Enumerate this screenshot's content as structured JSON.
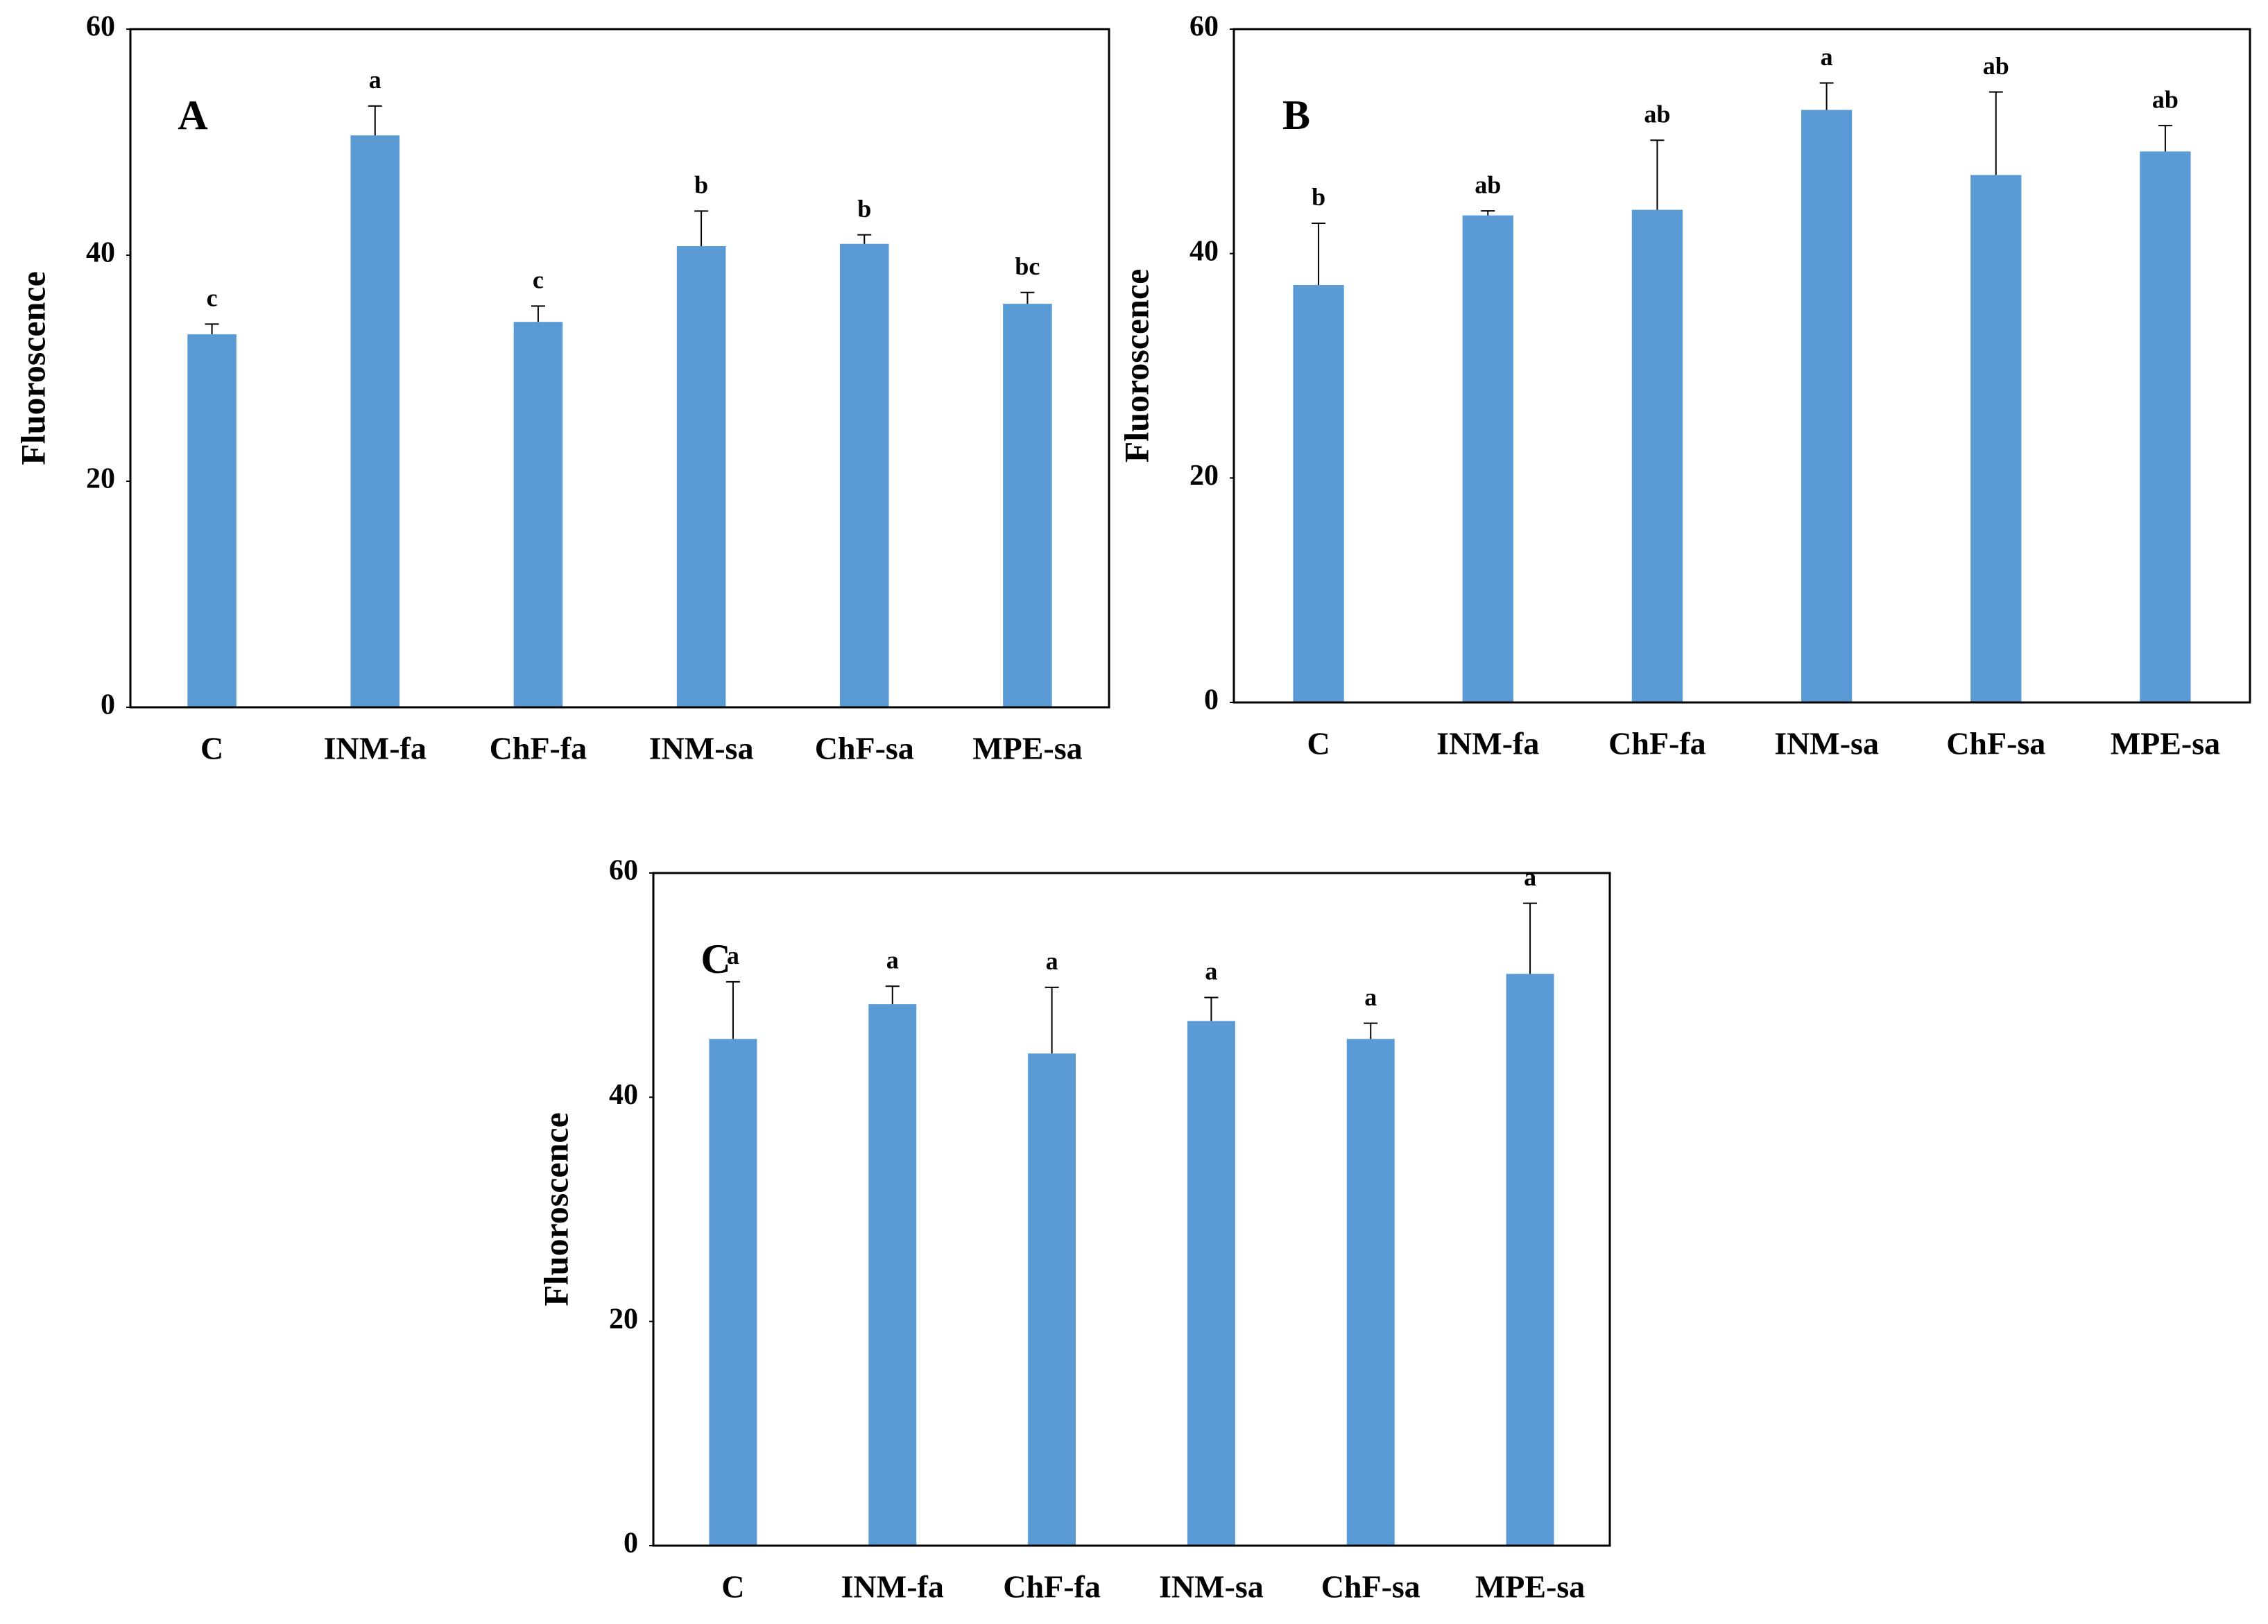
{
  "chart_data": [
    {
      "type": "bar",
      "panel_label": "A",
      "y_label": "Fluoroscence",
      "categories": [
        "C",
        "INM-fa",
        "ChF-fa",
        "INM-sa",
        "ChF-sa",
        "MPE-sa"
      ],
      "values": [
        33.0,
        50.6,
        34.1,
        40.8,
        41.0,
        35.7
      ],
      "errors": [
        0.9,
        2.6,
        1.4,
        3.1,
        0.8,
        1.0
      ],
      "significance_letters": [
        "c",
        "a",
        "c",
        "b",
        "b",
        "bc"
      ],
      "color": "#5b9bd5",
      "ylim": [
        0,
        60
      ],
      "yticks": [
        0,
        20,
        40,
        60
      ],
      "grid": false
    },
    {
      "type": "bar",
      "panel_label": "B",
      "y_label": "Fluoroscence",
      "categories": [
        "C",
        "INM-fa",
        "ChF-fa",
        "INM-sa",
        "ChF-sa",
        "MPE-sa"
      ],
      "values": [
        37.2,
        43.4,
        43.9,
        52.8,
        47.0,
        49.1
      ],
      "errors": [
        5.5,
        0.4,
        6.2,
        2.4,
        7.4,
        2.3
      ],
      "significance_letters": [
        "b",
        "ab",
        "ab",
        "a",
        "ab",
        "ab"
      ],
      "color": "#5b9bd5",
      "ylim": [
        0,
        60
      ],
      "yticks": [
        0,
        20,
        40,
        60
      ],
      "grid": false
    },
    {
      "type": "bar",
      "panel_label": "C",
      "y_label": "Fluoroscence",
      "categories": [
        "C",
        "INM-fa",
        "ChF-fa",
        "INM-sa",
        "ChF-sa",
        "MPE-sa"
      ],
      "values": [
        45.2,
        48.3,
        43.9,
        46.8,
        45.2,
        51.0
      ],
      "errors": [
        5.1,
        1.6,
        5.9,
        2.1,
        1.4,
        6.3
      ],
      "significance_letters": [
        "a",
        "a",
        "a",
        "a",
        "a",
        "a"
      ],
      "color": "#5b9bd5",
      "ylim": [
        0,
        60
      ],
      "yticks": [
        0,
        20,
        40,
        60
      ],
      "grid": false
    }
  ]
}
